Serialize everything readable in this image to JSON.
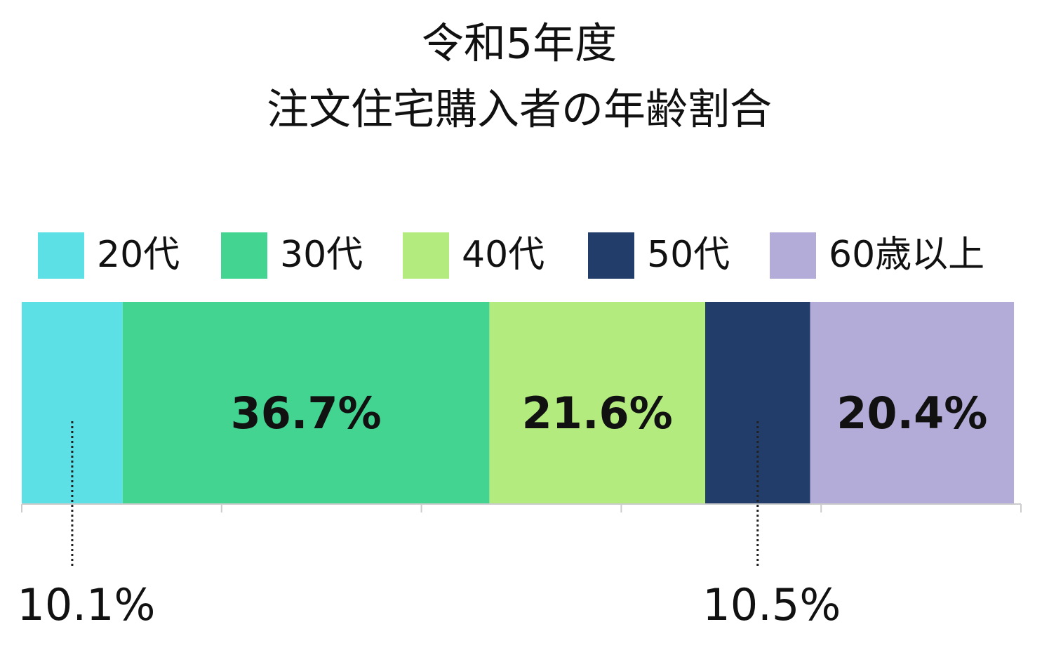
{
  "chart_data": {
    "type": "stacked-bar",
    "orientation": "horizontal",
    "title": [
      "令和5年度",
      "注文住宅購入者の年齢割合"
    ],
    "series": [
      {
        "name": "20代",
        "color": "#5ddfe6",
        "values": [
          10.1
        ],
        "value_labels": [
          "10.1%"
        ]
      },
      {
        "name": "30代",
        "color": "#43d492",
        "values": [
          36.7
        ],
        "value_labels": [
          "36.7%"
        ]
      },
      {
        "name": "40代",
        "color": "#b3eb7f",
        "values": [
          21.6
        ],
        "value_labels": [
          "21.6%"
        ]
      },
      {
        "name": "50代",
        "color": "#223d69",
        "values": [
          10.5
        ],
        "value_labels": [
          "10.5%"
        ]
      },
      {
        "name": "60歳以上",
        "color": "#b3acd8",
        "values": [
          20.4
        ],
        "value_labels": [
          "20.4%"
        ]
      }
    ],
    "xlim": [
      0,
      100
    ],
    "xticks": [
      0,
      20,
      40,
      60,
      80,
      100
    ],
    "legend": "top"
  }
}
